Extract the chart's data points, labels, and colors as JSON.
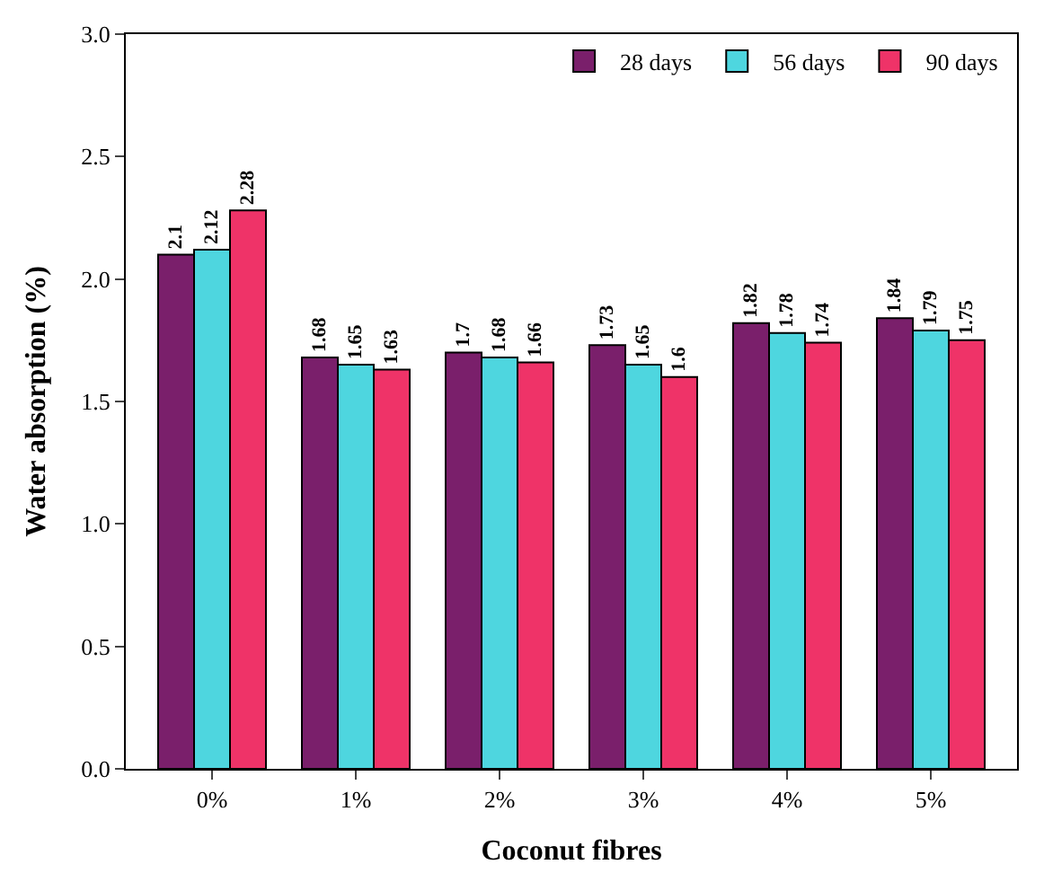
{
  "chart_data": {
    "type": "bar",
    "xlabel": "Coconut fibres",
    "ylabel": "Water absorption (%)",
    "categories": [
      "0%",
      "1%",
      "2%",
      "3%",
      "4%",
      "5%"
    ],
    "series": [
      {
        "name": "28 days",
        "color": "#7a1f6b",
        "values": [
          2.1,
          1.68,
          1.7,
          1.73,
          1.82,
          1.84
        ]
      },
      {
        "name": "56 days",
        "color": "#4ed6df",
        "values": [
          2.12,
          1.65,
          1.68,
          1.65,
          1.78,
          1.79
        ]
      },
      {
        "name": "90 days",
        "color": "#ef3368",
        "values": [
          2.28,
          1.63,
          1.66,
          1.6,
          1.74,
          1.75
        ]
      }
    ],
    "ylim": [
      0,
      3
    ],
    "yticks": [
      {
        "value": 0,
        "label": "0.0"
      },
      {
        "value": 0.5,
        "label": "0.5"
      },
      {
        "value": 1,
        "label": "1.0"
      },
      {
        "value": 1.5,
        "label": "1.5"
      },
      {
        "value": 2,
        "label": "2.0"
      },
      {
        "value": 2.5,
        "label": "2.5"
      },
      {
        "value": 3,
        "label": "3.0"
      }
    ],
    "data_labels": true,
    "legend": "top right"
  }
}
